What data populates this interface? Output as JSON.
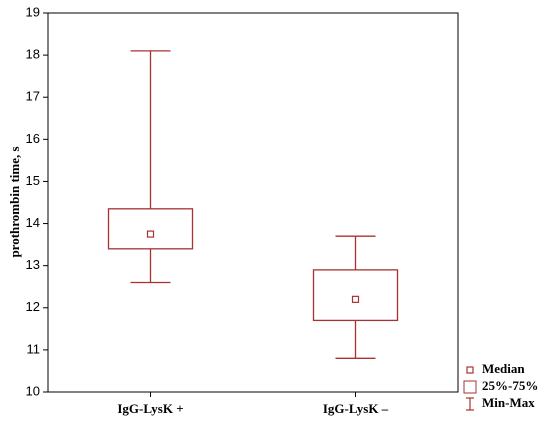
{
  "chart_data": {
    "type": "box",
    "y_label": "prothrombin time, s",
    "categories": [
      "IgG-LysK +",
      "IgG-LysK –"
    ],
    "min": [
      12.6,
      10.8
    ],
    "q1": [
      13.4,
      11.7
    ],
    "median": [
      13.75,
      12.2
    ],
    "q3": [
      14.35,
      12.9
    ],
    "max": [
      18.1,
      13.7
    ],
    "color": "#a83232",
    "ylim": [
      10,
      19
    ],
    "yticks": [
      10,
      11,
      12,
      13,
      14,
      15,
      16,
      17,
      18,
      19
    ],
    "legend": [
      "Median",
      "25%-75%",
      "Min-Max"
    ]
  }
}
